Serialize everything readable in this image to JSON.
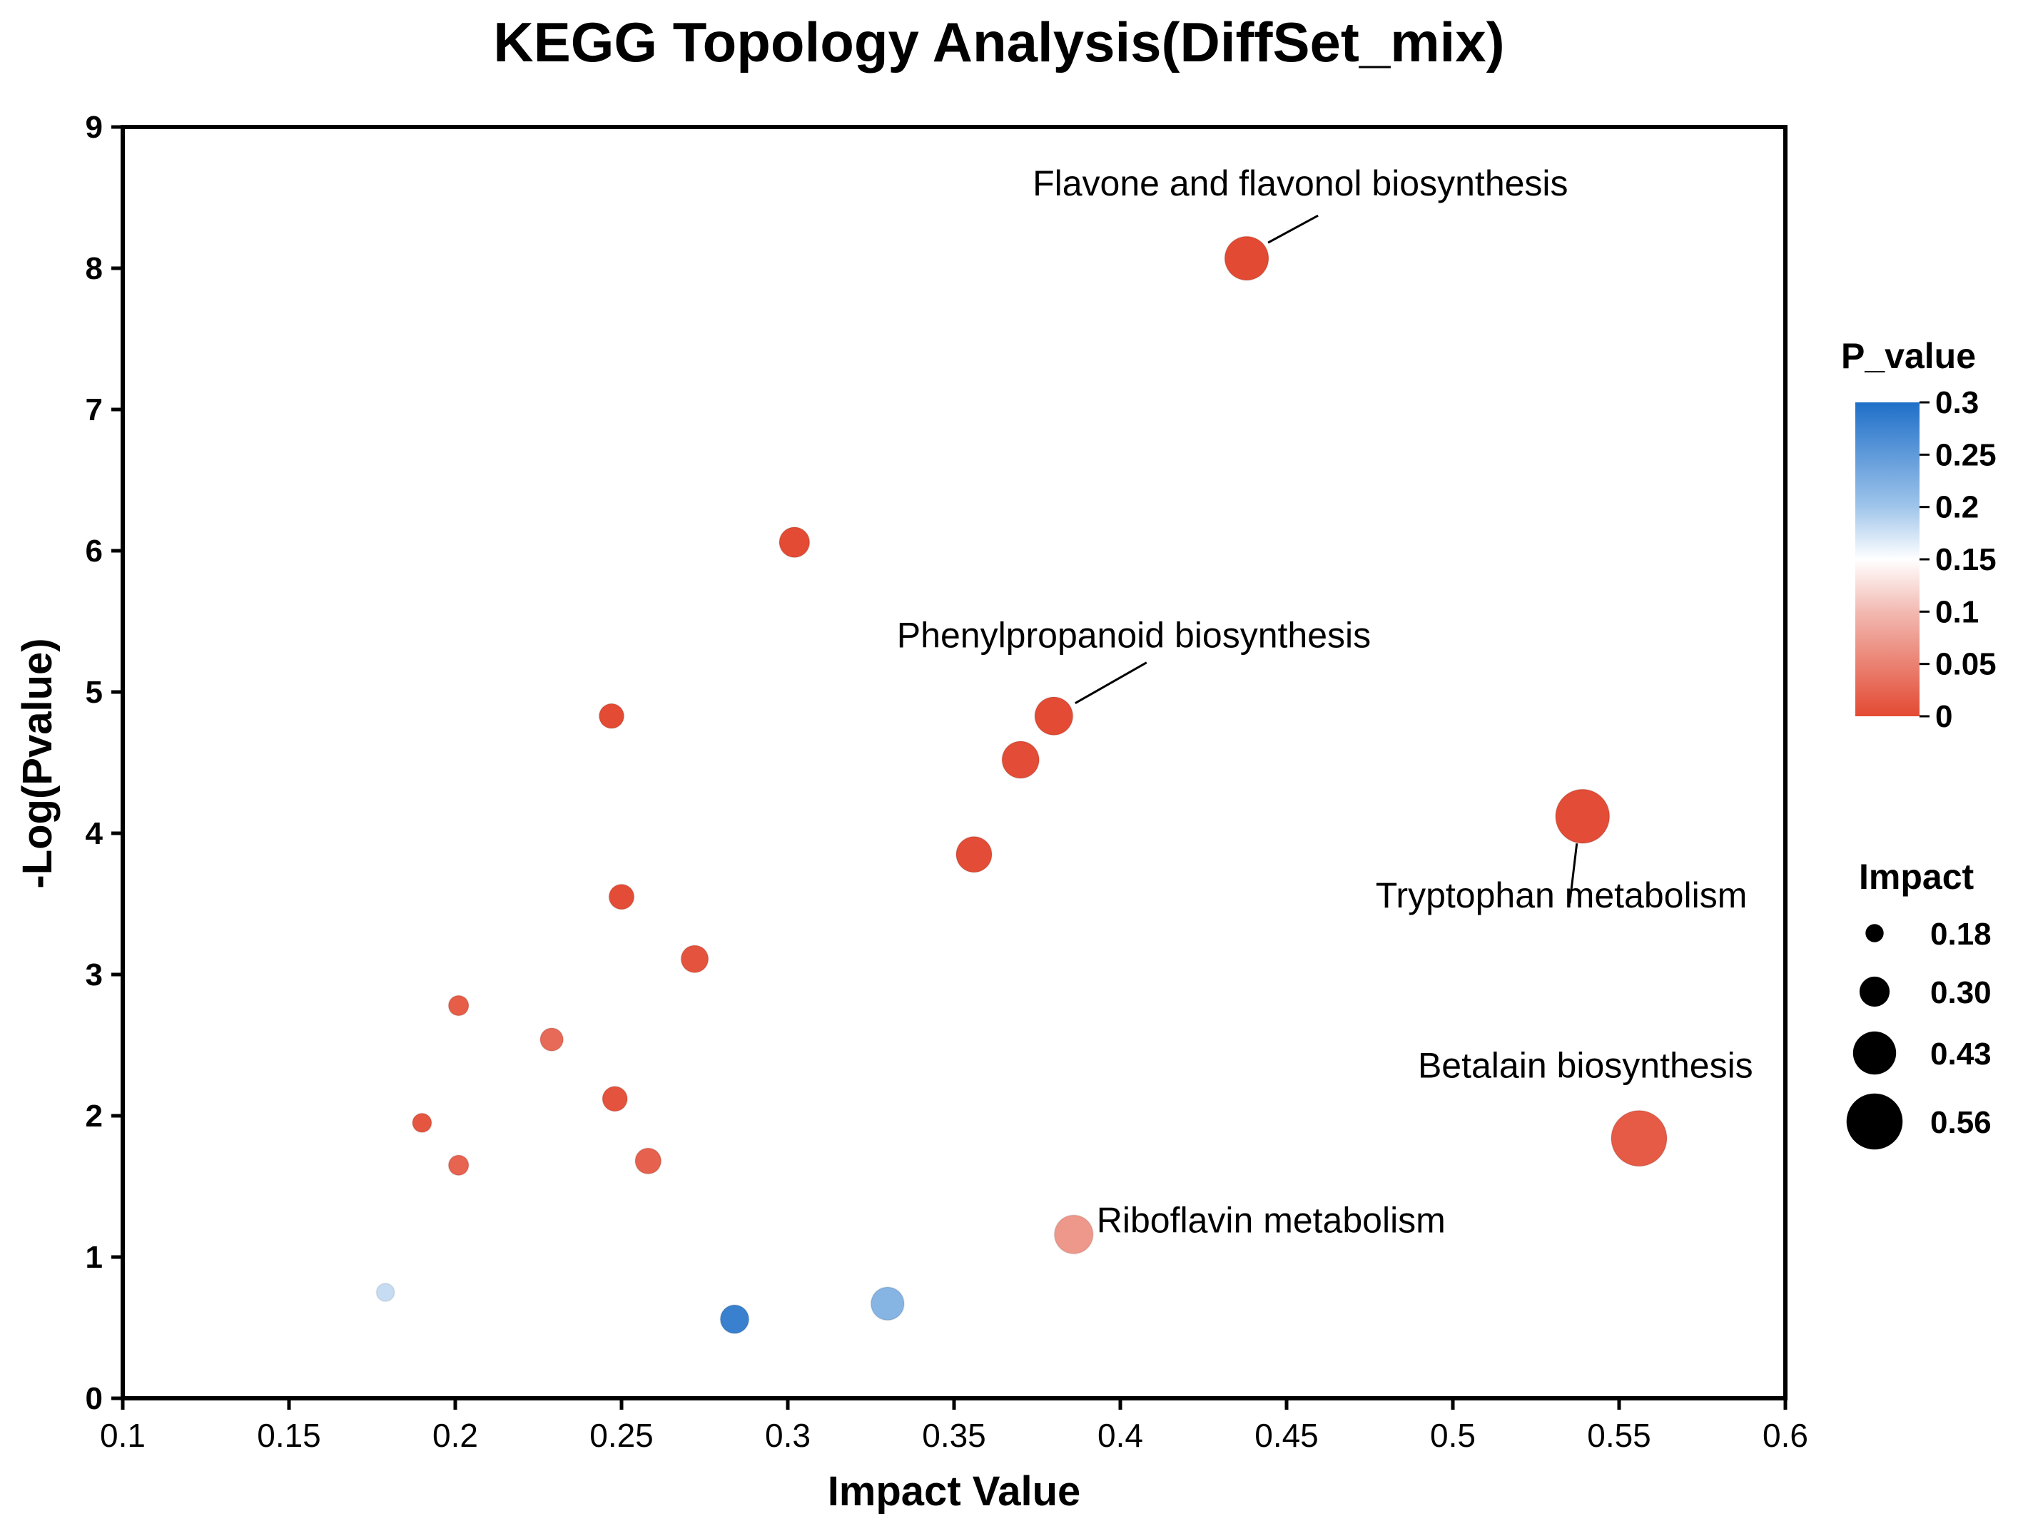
{
  "chart_data": {
    "type": "scatter",
    "title": "KEGG Topology Analysis(DiffSet_mix)",
    "xlabel": "Impact Value",
    "ylabel": "-Log(Pvalue)",
    "xlim": [
      0.1,
      0.6
    ],
    "ylim": [
      0,
      9
    ],
    "x_ticks": [
      "0.1",
      "0.15",
      "0.2",
      "0.25",
      "0.3",
      "0.35",
      "0.4",
      "0.45",
      "0.5",
      "0.55",
      "0.6"
    ],
    "y_ticks": [
      "0",
      "1",
      "2",
      "3",
      "4",
      "5",
      "6",
      "7",
      "8",
      "9"
    ],
    "grid": false,
    "points": [
      {
        "x": 0.438,
        "y": 8.07,
        "p": 0.0,
        "label": "Flavone and flavonol biosynthesis"
      },
      {
        "x": 0.302,
        "y": 6.06,
        "p": 0.001
      },
      {
        "x": 0.38,
        "y": 4.83,
        "p": 0.001,
        "label": "Phenylpropanoid biosynthesis"
      },
      {
        "x": 0.247,
        "y": 4.83,
        "p": 0.001
      },
      {
        "x": 0.37,
        "y": 4.52,
        "p": 0.002
      },
      {
        "x": 0.539,
        "y": 4.12,
        "p": 0.002,
        "label": "Tryptophan metabolism"
      },
      {
        "x": 0.356,
        "y": 3.85,
        "p": 0.002
      },
      {
        "x": 0.25,
        "y": 3.55,
        "p": 0.003
      },
      {
        "x": 0.272,
        "y": 3.11,
        "p": 0.008
      },
      {
        "x": 0.201,
        "y": 2.78,
        "p": 0.017
      },
      {
        "x": 0.229,
        "y": 2.54,
        "p": 0.029
      },
      {
        "x": 0.248,
        "y": 2.12,
        "p": 0.008
      },
      {
        "x": 0.19,
        "y": 1.95,
        "p": 0.011
      },
      {
        "x": 0.556,
        "y": 1.84,
        "p": 0.015,
        "label": "Betalain biosynthesis"
      },
      {
        "x": 0.258,
        "y": 1.68,
        "p": 0.021
      },
      {
        "x": 0.201,
        "y": 1.65,
        "p": 0.023
      },
      {
        "x": 0.386,
        "y": 1.16,
        "p": 0.07,
        "label": "Riboflavin metabolism"
      },
      {
        "x": 0.179,
        "y": 0.75,
        "p": 0.18
      },
      {
        "x": 0.33,
        "y": 0.67,
        "p": 0.22
      },
      {
        "x": 0.284,
        "y": 0.56,
        "p": 0.28
      }
    ],
    "color_legend": {
      "title": "P_value",
      "ticks": [
        "0.3",
        "0.25",
        "0.2",
        "0.15",
        "0.1",
        "0.05",
        "0"
      ],
      "range": [
        0,
        0.3
      ],
      "colors": {
        "low": "#e34a33",
        "mid_low": "#f2b8b0",
        "mid": "#ffffff",
        "mid_high": "#9ec4ea",
        "high": "#1f6fc8"
      }
    },
    "size_legend": {
      "title": "Impact",
      "values": [
        "0.18",
        "0.30",
        "0.43",
        "0.56"
      ]
    }
  }
}
